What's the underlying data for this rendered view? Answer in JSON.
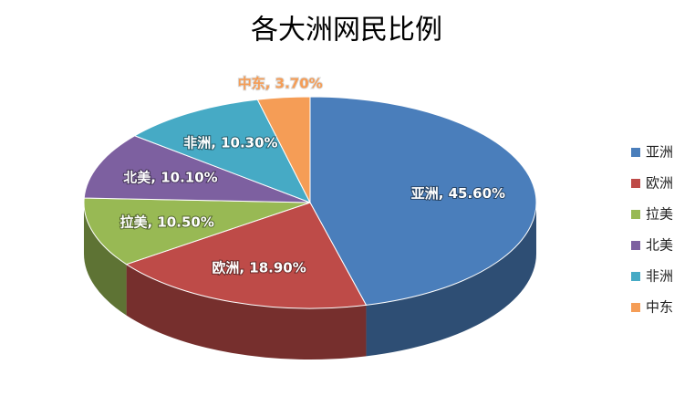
{
  "chart_data": {
    "type": "pie",
    "title": "各大洲网民比例",
    "categories": [
      "亚洲",
      "欧洲",
      "拉美",
      "北美",
      "非洲",
      "中东"
    ],
    "values": [
      45.6,
      18.9,
      10.5,
      10.1,
      10.3,
      3.7
    ],
    "value_labels": [
      "亚洲, 45.60%",
      "欧洲, 18.90%",
      "拉美, 10.50%",
      "北美, 10.10%",
      "非洲, 10.30%",
      "中东, 3.70%"
    ],
    "colors": [
      "#4a7ebb",
      "#be4b48",
      "#98b954",
      "#7d60a0",
      "#46aac5",
      "#f59d56"
    ],
    "legend": "right"
  }
}
